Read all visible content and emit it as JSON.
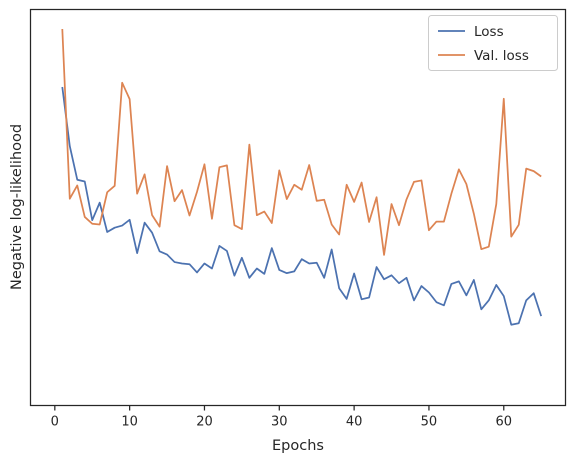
{
  "chart_data": {
    "type": "line",
    "xlabel": "Epochs",
    "ylabel": "Negative log-likelihood",
    "xlim": [
      -3.25,
      68.25
    ],
    "ylim": [
      0,
      1
    ],
    "x_ticks": [
      0,
      10,
      20,
      30,
      40,
      50,
      60
    ],
    "y_ticks_shown": false,
    "grid": false,
    "legend_position": "top-right",
    "series": [
      {
        "name": "Loss",
        "color": "#4c72b0",
        "x": [
          1,
          2,
          3,
          4,
          5,
          6,
          7,
          8,
          9,
          10,
          11,
          12,
          13,
          14,
          15,
          16,
          17,
          18,
          19,
          20,
          21,
          22,
          23,
          24,
          25,
          26,
          27,
          28,
          29,
          30,
          31,
          32,
          33,
          34,
          35,
          36,
          37,
          38,
          39,
          40,
          41,
          42,
          43,
          44,
          45,
          46,
          47,
          48,
          49,
          50,
          51,
          52,
          53,
          54,
          55,
          56,
          57,
          58,
          59,
          60,
          61,
          62,
          63,
          64,
          65
        ],
        "values": [
          0.838,
          0.673,
          0.579,
          0.574,
          0.466,
          0.515,
          0.433,
          0.445,
          0.451,
          0.467,
          0.374,
          0.459,
          0.431,
          0.379,
          0.37,
          0.349,
          0.345,
          0.343,
          0.32,
          0.345,
          0.331,
          0.394,
          0.38,
          0.311,
          0.361,
          0.305,
          0.331,
          0.316,
          0.388,
          0.327,
          0.318,
          0.323,
          0.357,
          0.345,
          0.347,
          0.305,
          0.384,
          0.276,
          0.246,
          0.317,
          0.245,
          0.25,
          0.335,
          0.301,
          0.312,
          0.29,
          0.305,
          0.242,
          0.282,
          0.264,
          0.237,
          0.228,
          0.288,
          0.295,
          0.256,
          0.299,
          0.217,
          0.242,
          0.285,
          0.254,
          0.174,
          0.178,
          0.242,
          0.262,
          0.198
        ]
      },
      {
        "name": "Val. loss",
        "color": "#dd8452",
        "x": [
          1,
          2,
          3,
          4,
          5,
          6,
          7,
          8,
          9,
          10,
          11,
          12,
          13,
          14,
          15,
          16,
          17,
          18,
          19,
          20,
          21,
          22,
          23,
          24,
          25,
          26,
          27,
          28,
          29,
          30,
          31,
          32,
          33,
          34,
          35,
          36,
          37,
          38,
          39,
          40,
          41,
          42,
          43,
          44,
          45,
          46,
          47,
          48,
          49,
          50,
          51,
          52,
          53,
          54,
          55,
          56,
          57,
          58,
          59,
          60,
          61,
          62,
          63,
          64,
          65
        ],
        "values": [
          1.0,
          0.526,
          0.563,
          0.475,
          0.456,
          0.454,
          0.544,
          0.562,
          0.85,
          0.804,
          0.54,
          0.594,
          0.48,
          0.448,
          0.617,
          0.519,
          0.55,
          0.479,
          0.545,
          0.622,
          0.47,
          0.614,
          0.619,
          0.452,
          0.441,
          0.677,
          0.48,
          0.49,
          0.458,
          0.605,
          0.525,
          0.565,
          0.551,
          0.62,
          0.52,
          0.523,
          0.454,
          0.426,
          0.565,
          0.517,
          0.571,
          0.461,
          0.53,
          0.369,
          0.511,
          0.452,
          0.524,
          0.573,
          0.577,
          0.438,
          0.462,
          0.462,
          0.54,
          0.608,
          0.567,
          0.484,
          0.385,
          0.392,
          0.511,
          0.805,
          0.42,
          0.453,
          0.61,
          0.603,
          0.588
        ]
      }
    ]
  }
}
